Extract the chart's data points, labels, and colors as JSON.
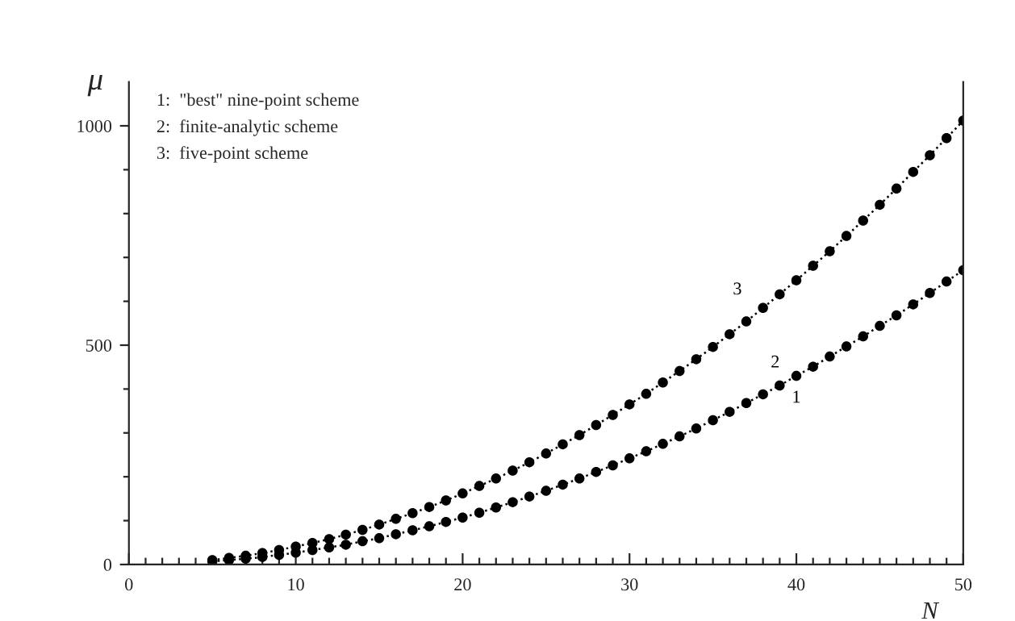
{
  "chart_data": {
    "type": "line",
    "xlabel": "N",
    "ylabel": "μ",
    "x": [
      5,
      6,
      7,
      8,
      9,
      10,
      11,
      12,
      13,
      14,
      15,
      16,
      17,
      18,
      19,
      20,
      21,
      22,
      23,
      24,
      25,
      26,
      27,
      28,
      29,
      30,
      31,
      32,
      33,
      34,
      35,
      36,
      37,
      38,
      39,
      40,
      41,
      42,
      43,
      44,
      45,
      46,
      47,
      48,
      49,
      50
    ],
    "series": [
      {
        "color": "#000000",
        "values": [
          10,
          15,
          20,
          26,
          33,
          41,
          49,
          58,
          68,
          79,
          91,
          104,
          117,
          131,
          146,
          162,
          179,
          196,
          214,
          233,
          253,
          274,
          295,
          318,
          341,
          365,
          389,
          415,
          441,
          468,
          496,
          525,
          554,
          585,
          616,
          648,
          681,
          714,
          749,
          784,
          820,
          857,
          895,
          933,
          972,
          1012
        ]
      },
      {
        "color": "#000000",
        "values": [
          7,
          10,
          13,
          17,
          22,
          27,
          33,
          39,
          45,
          53,
          60,
          69,
          78,
          87,
          97,
          107,
          118,
          130,
          142,
          155,
          168,
          182,
          196,
          211,
          226,
          242,
          258,
          275,
          292,
          310,
          329,
          348,
          368,
          388,
          408,
          430,
          451,
          474,
          497,
          520,
          544,
          568,
          593,
          619,
          645,
          671
        ]
      }
    ],
    "annotations": [
      "1:  \"best\" nine-point scheme",
      "2:  finite-analytic scheme",
      "3:  five-point scheme",
      {
        "text": "3",
        "x": 37,
        "y": 554
      },
      {
        "text": "2",
        "x": 39,
        "y": 408
      },
      {
        "text": "1",
        "x": 40,
        "y": 430
      }
    ],
    "marker": "circle",
    "line_style": "dotted",
    "grid": false,
    "legend": false,
    "xlim": [
      0,
      50
    ],
    "ylim": [
      0,
      1100
    ],
    "xticks": [
      0,
      {
        "value": 1,
        "label": null
      },
      {
        "value": 2,
        "label": null
      },
      {
        "value": 3,
        "label": null
      },
      {
        "value": 4,
        "label": null
      },
      {
        "value": 5,
        "label": null
      },
      {
        "value": 6,
        "label": null
      },
      {
        "value": 7,
        "label": null
      },
      {
        "value": 8,
        "label": null
      },
      {
        "value": 9,
        "label": null
      },
      10,
      {
        "value": 11,
        "label": null
      },
      {
        "value": 12,
        "label": null
      },
      {
        "value": 13,
        "label": null
      },
      {
        "value": 14,
        "label": null
      },
      {
        "value": 15,
        "label": null
      },
      {
        "value": 16,
        "label": null
      },
      {
        "value": 17,
        "label": null
      },
      {
        "value": 18,
        "label": null
      },
      {
        "value": 19,
        "label": null
      },
      20,
      {
        "value": 21,
        "label": null
      },
      {
        "value": 22,
        "label": null
      },
      {
        "value": 23,
        "label": null
      },
      {
        "value": 24,
        "label": null
      },
      {
        "value": 25,
        "label": null
      },
      {
        "value": 26,
        "label": null
      },
      {
        "value": 27,
        "label": null
      },
      {
        "value": 28,
        "label": null
      },
      {
        "value": 29,
        "label": null
      },
      30,
      {
        "value": 31,
        "label": null
      },
      {
        "value": 32,
        "label": null
      },
      {
        "value": 33,
        "label": null
      },
      {
        "value": 34,
        "label": null
      },
      {
        "value": 35,
        "label": null
      },
      {
        "value": 36,
        "label": null
      },
      {
        "value": 37,
        "label": null
      },
      {
        "value": 38,
        "label": null
      },
      {
        "value": 39,
        "label": null
      },
      40,
      {
        "value": 41,
        "label": null
      },
      {
        "value": 42,
        "label": null
      },
      {
        "value": 43,
        "label": null
      },
      {
        "value": 44,
        "label": null
      },
      {
        "value": 45,
        "label": null
      },
      {
        "value": 46,
        "label": null
      },
      {
        "value": 47,
        "label": null
      },
      {
        "value": 48,
        "label": null
      },
      {
        "value": 49,
        "label": null
      },
      50
    ],
    "yticks": [
      0,
      {
        "value": 100,
        "label": null
      },
      {
        "value": 200,
        "label": null
      },
      {
        "value": 300,
        "label": null
      },
      {
        "value": 400,
        "label": null
      },
      500,
      {
        "value": 600,
        "label": null
      },
      {
        "value": 700,
        "label": null
      },
      {
        "value": 800,
        "label": null
      },
      {
        "value": 900,
        "label": null
      },
      1000
    ]
  }
}
